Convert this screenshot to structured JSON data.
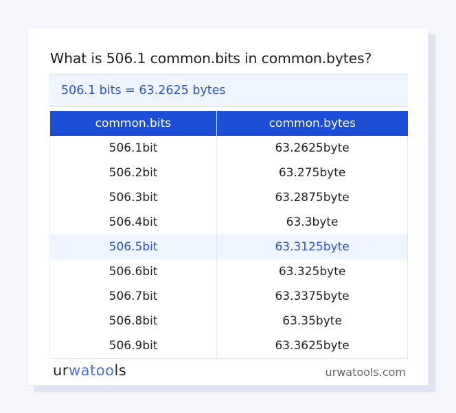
{
  "title": "What is 506.1 common.bits in common.bytes?",
  "result": "506.1 bits = 63.2625 bytes",
  "table": {
    "headers": [
      "common.bits",
      "common.bytes"
    ],
    "rows": [
      [
        "506.1bit",
        "63.2625byte"
      ],
      [
        "506.2bit",
        "63.275byte"
      ],
      [
        "506.3bit",
        "63.2875byte"
      ],
      [
        "506.4bit",
        "63.3byte"
      ],
      [
        "506.5bit",
        "63.3125byte"
      ],
      [
        "506.6bit",
        "63.325byte"
      ],
      [
        "506.7bit",
        "63.3375byte"
      ],
      [
        "506.8bit",
        "63.35byte"
      ],
      [
        "506.9bit",
        "63.3625byte"
      ]
    ],
    "highlighted_row": 4
  },
  "footer": {
    "logo": "urwatools",
    "site": "urwatools.com"
  },
  "colors": {
    "accent": "#1c4fd6",
    "highlight_bg": "#eef5fe",
    "highlight_text": "#2a55c8"
  }
}
